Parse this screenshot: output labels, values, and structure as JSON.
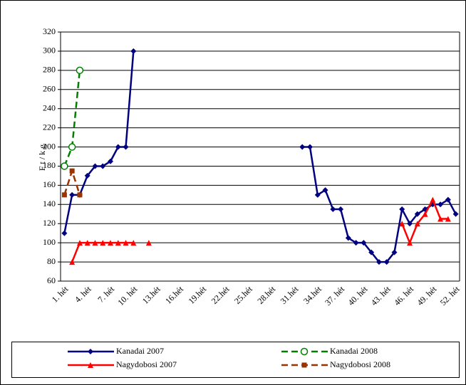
{
  "chart_data": {
    "type": "line",
    "ylabel": "Ft/kg",
    "categories": [
      "1. hét",
      null,
      null,
      "4. hét",
      null,
      null,
      "7. hét",
      null,
      null,
      "10. hét",
      null,
      null,
      "13.hét",
      null,
      null,
      "16.hét",
      null,
      null,
      "19.hét",
      null,
      null,
      "22.hét",
      null,
      null,
      "25.hét",
      null,
      null,
      "28.hét",
      null,
      null,
      "31.hét",
      null,
      null,
      "34.hét",
      null,
      null,
      "37. hét",
      null,
      null,
      "40. hét",
      null,
      null,
      "43. hét",
      null,
      null,
      "46. hét",
      null,
      null,
      "49. hét",
      null,
      null,
      "52. hét"
    ],
    "series": [
      {
        "name": "Kanadai 2007",
        "color": "#000080",
        "marker": "diamond",
        "dashed": false,
        "values": [
          110,
          150,
          150,
          170,
          180,
          180,
          185,
          200,
          200,
          300,
          null,
          null,
          null,
          null,
          null,
          null,
          null,
          null,
          null,
          null,
          null,
          null,
          null,
          null,
          null,
          null,
          null,
          null,
          null,
          null,
          null,
          200,
          200,
          150,
          155,
          135,
          135,
          105,
          100,
          100,
          90,
          80,
          80,
          90,
          135,
          120,
          130,
          135,
          140,
          140,
          145,
          130
        ]
      },
      {
        "name": "Kanadai 2008",
        "color": "#008000",
        "marker": "circle",
        "dashed": true,
        "values": [
          180,
          200,
          280,
          null,
          null,
          null,
          null,
          null,
          null,
          null,
          null,
          null,
          null,
          null,
          null,
          null,
          null,
          null,
          null,
          null,
          null,
          null,
          null,
          null,
          null,
          null,
          null,
          null,
          null,
          null,
          null,
          null,
          null,
          null,
          null,
          null,
          null,
          null,
          null,
          null,
          null,
          null,
          null,
          null,
          null,
          null,
          null,
          null,
          null,
          null,
          null,
          null
        ]
      },
      {
        "name": "Nagydobosi 2007",
        "color": "#ff0000",
        "marker": "triangle",
        "dashed": false,
        "values": [
          null,
          80,
          100,
          100,
          100,
          100,
          100,
          100,
          100,
          100,
          null,
          100,
          null,
          null,
          null,
          null,
          null,
          null,
          null,
          null,
          null,
          null,
          null,
          null,
          null,
          null,
          null,
          null,
          null,
          null,
          null,
          null,
          null,
          null,
          null,
          null,
          null,
          null,
          null,
          null,
          null,
          null,
          null,
          null,
          120,
          100,
          120,
          130,
          145,
          125,
          125,
          null
        ]
      },
      {
        "name": "Nagydobosi 2008",
        "color": "#993300",
        "marker": "square",
        "dashed": true,
        "values": [
          150,
          175,
          150,
          null,
          null,
          null,
          null,
          null,
          null,
          null,
          null,
          null,
          null,
          null,
          null,
          null,
          null,
          null,
          null,
          null,
          null,
          null,
          null,
          null,
          null,
          null,
          null,
          null,
          null,
          null,
          null,
          null,
          null,
          null,
          null,
          null,
          null,
          null,
          null,
          null,
          null,
          null,
          null,
          null,
          null,
          null,
          null,
          null,
          null,
          null,
          null,
          null
        ]
      }
    ],
    "ylim": [
      60,
      320
    ],
    "yticks": [
      60,
      80,
      100,
      120,
      140,
      160,
      180,
      200,
      220,
      240,
      260,
      280,
      300,
      320
    ],
    "grid": true
  }
}
